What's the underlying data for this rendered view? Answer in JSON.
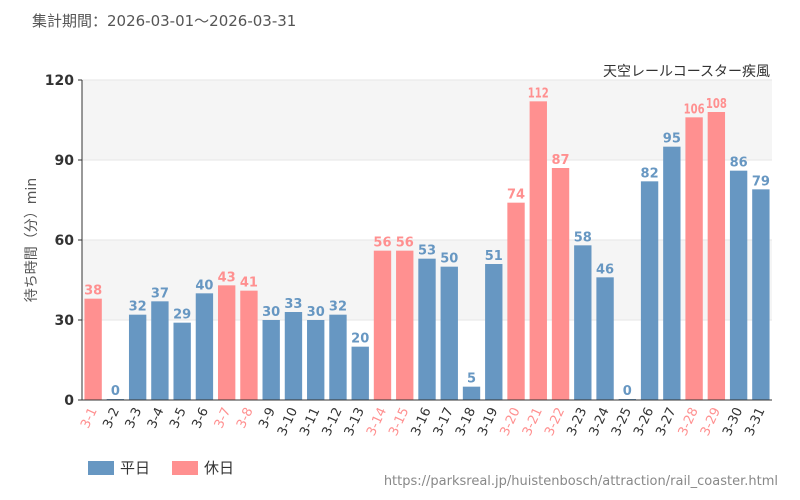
{
  "period_text": "集計期間：2026-03-01～2026-03-31",
  "source_text": "https://parksreal.jp/huistenbosch/attraction/rail_coaster.html",
  "colors": {
    "weekday": "#6797c2",
    "holiday": "#ff9090",
    "grid": "#e6e6e6",
    "band": "#f5f5f5",
    "axis": "#333333",
    "tick": "#333333"
  },
  "chart_data": {
    "type": "bar",
    "title": "天空レールコースター疾風",
    "ylabel": "待ち時間（分）min",
    "xlabel": "",
    "ylim": [
      0,
      120
    ],
    "yticks": [
      0,
      30,
      60,
      90,
      120
    ],
    "grid": true,
    "legend_position": "bottom-left",
    "categories": [
      "3-1",
      "3-2",
      "3-3",
      "3-4",
      "3-5",
      "3-6",
      "3-7",
      "3-8",
      "3-9",
      "3-10",
      "3-11",
      "3-12",
      "3-13",
      "3-14",
      "3-15",
      "3-16",
      "3-17",
      "3-18",
      "3-19",
      "3-20",
      "3-21",
      "3-22",
      "3-23",
      "3-24",
      "3-25",
      "3-26",
      "3-27",
      "3-28",
      "3-29",
      "3-30",
      "3-31"
    ],
    "values": [
      38,
      0,
      32,
      37,
      29,
      40,
      43,
      41,
      30,
      33,
      30,
      32,
      20,
      56,
      56,
      53,
      50,
      5,
      51,
      74,
      112,
      87,
      58,
      46,
      0,
      82,
      95,
      106,
      108,
      86,
      79
    ],
    "day_type": [
      "holiday",
      "weekday",
      "weekday",
      "weekday",
      "weekday",
      "weekday",
      "holiday",
      "holiday",
      "weekday",
      "weekday",
      "weekday",
      "weekday",
      "weekday",
      "holiday",
      "holiday",
      "weekday",
      "weekday",
      "weekday",
      "weekday",
      "holiday",
      "holiday",
      "holiday",
      "weekday",
      "weekday",
      "weekday",
      "weekday",
      "weekday",
      "holiday",
      "holiday",
      "weekday",
      "weekday"
    ],
    "legend": [
      {
        "key": "weekday",
        "label": "平日"
      },
      {
        "key": "holiday",
        "label": "休日"
      }
    ]
  }
}
